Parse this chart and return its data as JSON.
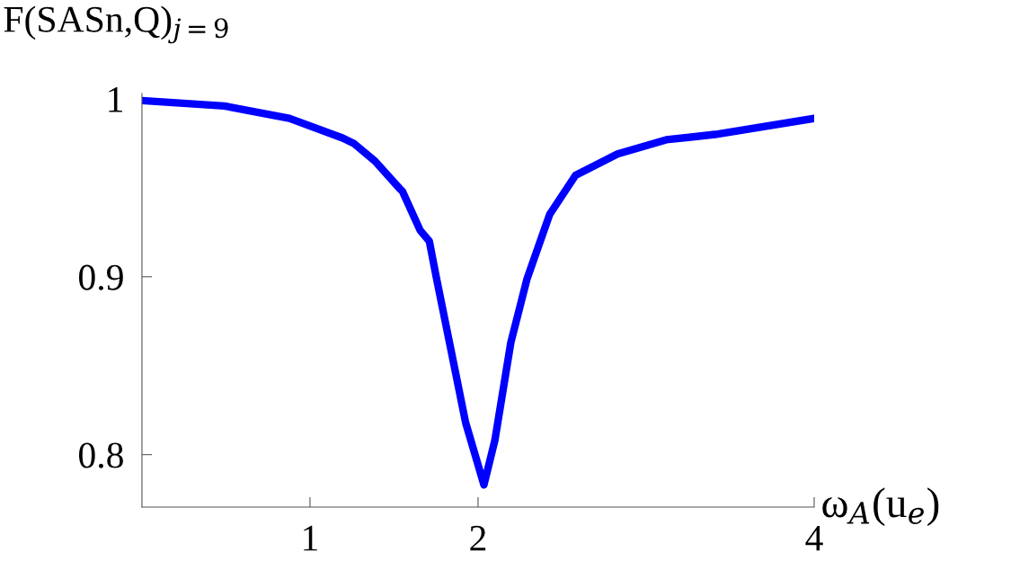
{
  "chart_data": {
    "type": "line",
    "xlabel": "ω$_{A}$(u$_{e}$)",
    "ylabel": "F(SASn,Q)$_{j=9}$",
    "x": [
      0,
      0.49,
      0.877,
      1.194,
      1.26,
      1.387,
      1.539,
      1.55,
      1.656,
      1.71,
      1.753,
      1.83,
      1.926,
      2.035,
      2.1,
      2.195,
      2.292,
      2.426,
      2.58,
      2.83,
      3.12,
      3.41,
      4
    ],
    "series": [
      {
        "color": "#0000ff",
        "values": [
          0.999,
          0.996,
          0.989,
          0.978,
          0.975,
          0.965,
          0.949,
          0.948,
          0.926,
          0.92,
          0.899,
          0.863,
          0.818,
          0.783,
          0.808,
          0.863,
          0.899,
          0.935,
          0.957,
          0.969,
          0.977,
          0.98,
          0.989
        ]
      }
    ],
    "xlim": [
      0,
      4
    ],
    "ylim": [
      0.7705,
      1.003
    ],
    "xticks": [
      1,
      2,
      4
    ],
    "yticks": [
      0.8,
      0.9,
      1
    ],
    "grid": false,
    "legend": false
  }
}
